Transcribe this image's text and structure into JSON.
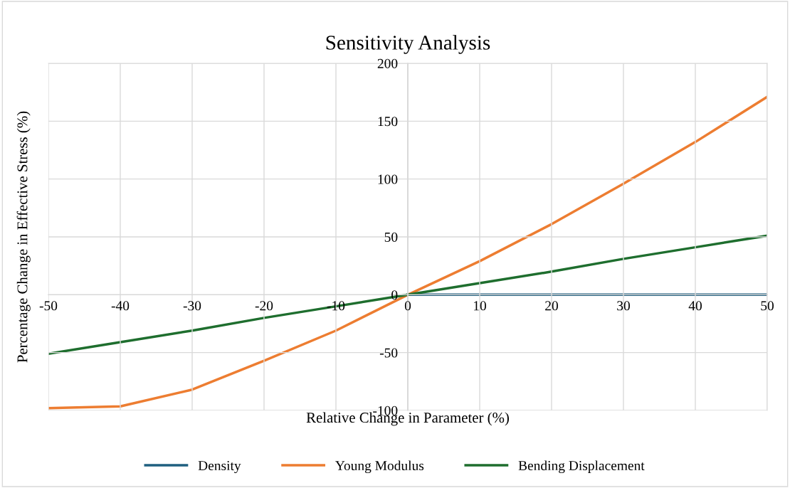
{
  "chart_data": {
    "type": "line",
    "title": "Sensitivity Analysis",
    "xlabel": "Relative Change in Parameter (%)",
    "ylabel": "Percentage Change in Effective Stress (%)",
    "x": [
      -50,
      -40,
      -30,
      -20,
      -10,
      0,
      10,
      20,
      30,
      40,
      50
    ],
    "series": [
      {
        "name": "Density",
        "color": "#1f5f7f",
        "values": [
          null,
          null,
          null,
          null,
          null,
          0,
          0,
          0,
          0,
          0,
          0
        ]
      },
      {
        "name": "Young Modulus",
        "color": "#ed7d31",
        "values": [
          -98,
          -96.5,
          -82,
          -57,
          -31,
          0,
          29,
          61,
          96,
          132,
          171
        ]
      },
      {
        "name": "Bending Displacement",
        "color": "#1e6e2e",
        "values": [
          -51,
          -41,
          -31,
          -20,
          -10,
          0,
          10,
          20,
          31,
          41,
          51
        ]
      }
    ],
    "xlim": [
      -50,
      50
    ],
    "xticks": [
      -50,
      -40,
      -30,
      -20,
      -10,
      0,
      10,
      20,
      30,
      40,
      50
    ],
    "ylim": [
      -100,
      200
    ],
    "yticks": [
      -100,
      -50,
      0,
      50,
      100,
      150,
      200
    ],
    "grid": true,
    "legend": "bottom",
    "marker": "none",
    "line_style": "solid"
  }
}
